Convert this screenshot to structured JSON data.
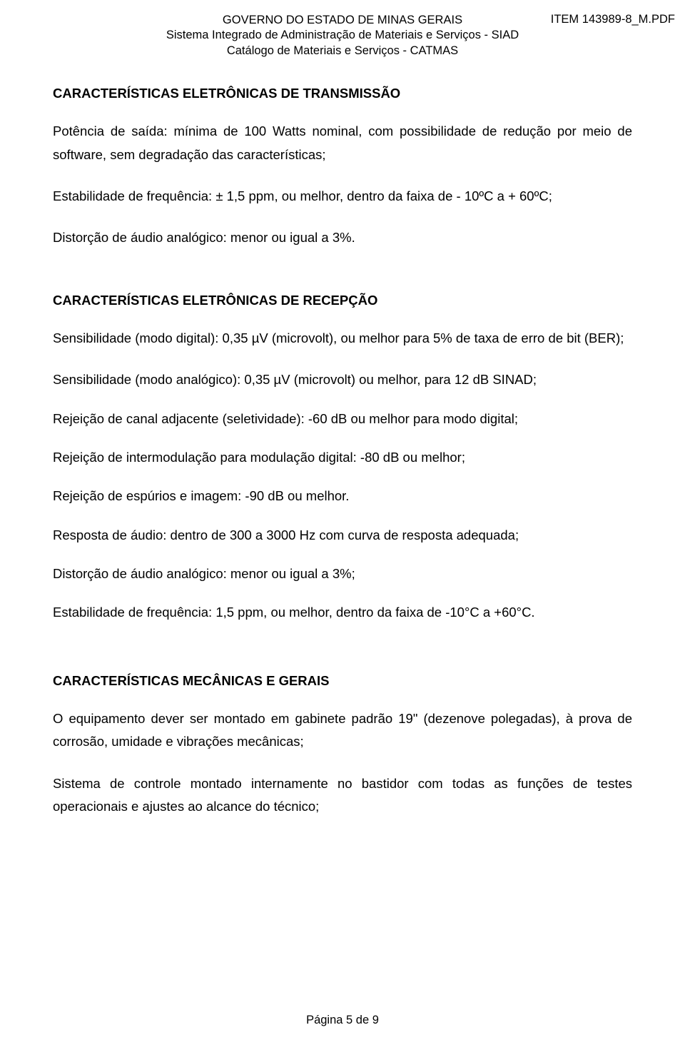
{
  "header": {
    "line1": "GOVERNO DO ESTADO DE MINAS GERAIS",
    "line2": "Sistema Integrado de Administração de Materiais e Serviços - SIAD",
    "line3": "Catálogo de Materiais e Serviços - CATMAS",
    "right": "ITEM 143989-8_M.PDF"
  },
  "sections": {
    "s1_title": "CARACTERÍSTICAS ELETRÔNICAS DE TRANSMISSÃO",
    "s1_p1": "Potência de saída: mínima de 100 Watts nominal, com possibilidade de redução por meio de software, sem degradação das características;",
    "s1_p2": "Estabilidade de frequência: ± 1,5 ppm, ou melhor, dentro da faixa de - 10ºC a + 60ºC;",
    "s1_p3": "Distorção de áudio analógico: menor ou igual a 3%.",
    "s2_title": "CARACTERÍSTICAS ELETRÔNICAS DE RECEPÇÃO",
    "s2_p1": "Sensibilidade (modo digital): 0,35 µV (microvolt), ou melhor para 5% de taxa de erro de bit (BER);",
    "s2_p2": "Sensibilidade (modo analógico): 0,35 µV (microvolt) ou melhor, para 12 dB SINAD;",
    "s2_p3": "Rejeição de canal adjacente (seletividade): -60 dB ou melhor para modo digital;",
    "s2_p4": "Rejeição de intermodulação para modulação digital: -80 dB ou melhor;",
    "s2_p5": "Rejeição de espúrios e imagem: -90 dB ou melhor.",
    "s2_p6": "Resposta de áudio: dentro de 300 a 3000 Hz com curva de resposta adequada;",
    "s2_p7": "Distorção de áudio analógico: menor ou igual a 3%;",
    "s2_p8": "Estabilidade de frequência: 1,5 ppm, ou melhor, dentro da faixa de -10°C a +60°C.",
    "s3_title": "CARACTERÍSTICAS MECÂNICAS E GERAIS",
    "s3_p1": "O equipamento dever ser montado em gabinete padrão 19\" (dezenove polegadas), à prova de corrosão, umidade e vibrações mecânicas;",
    "s3_p2": "Sistema de controle montado internamente no bastidor com todas as funções de testes operacionais e ajustes ao alcance do técnico;"
  },
  "footer": {
    "page": "Página 5 de 9"
  }
}
